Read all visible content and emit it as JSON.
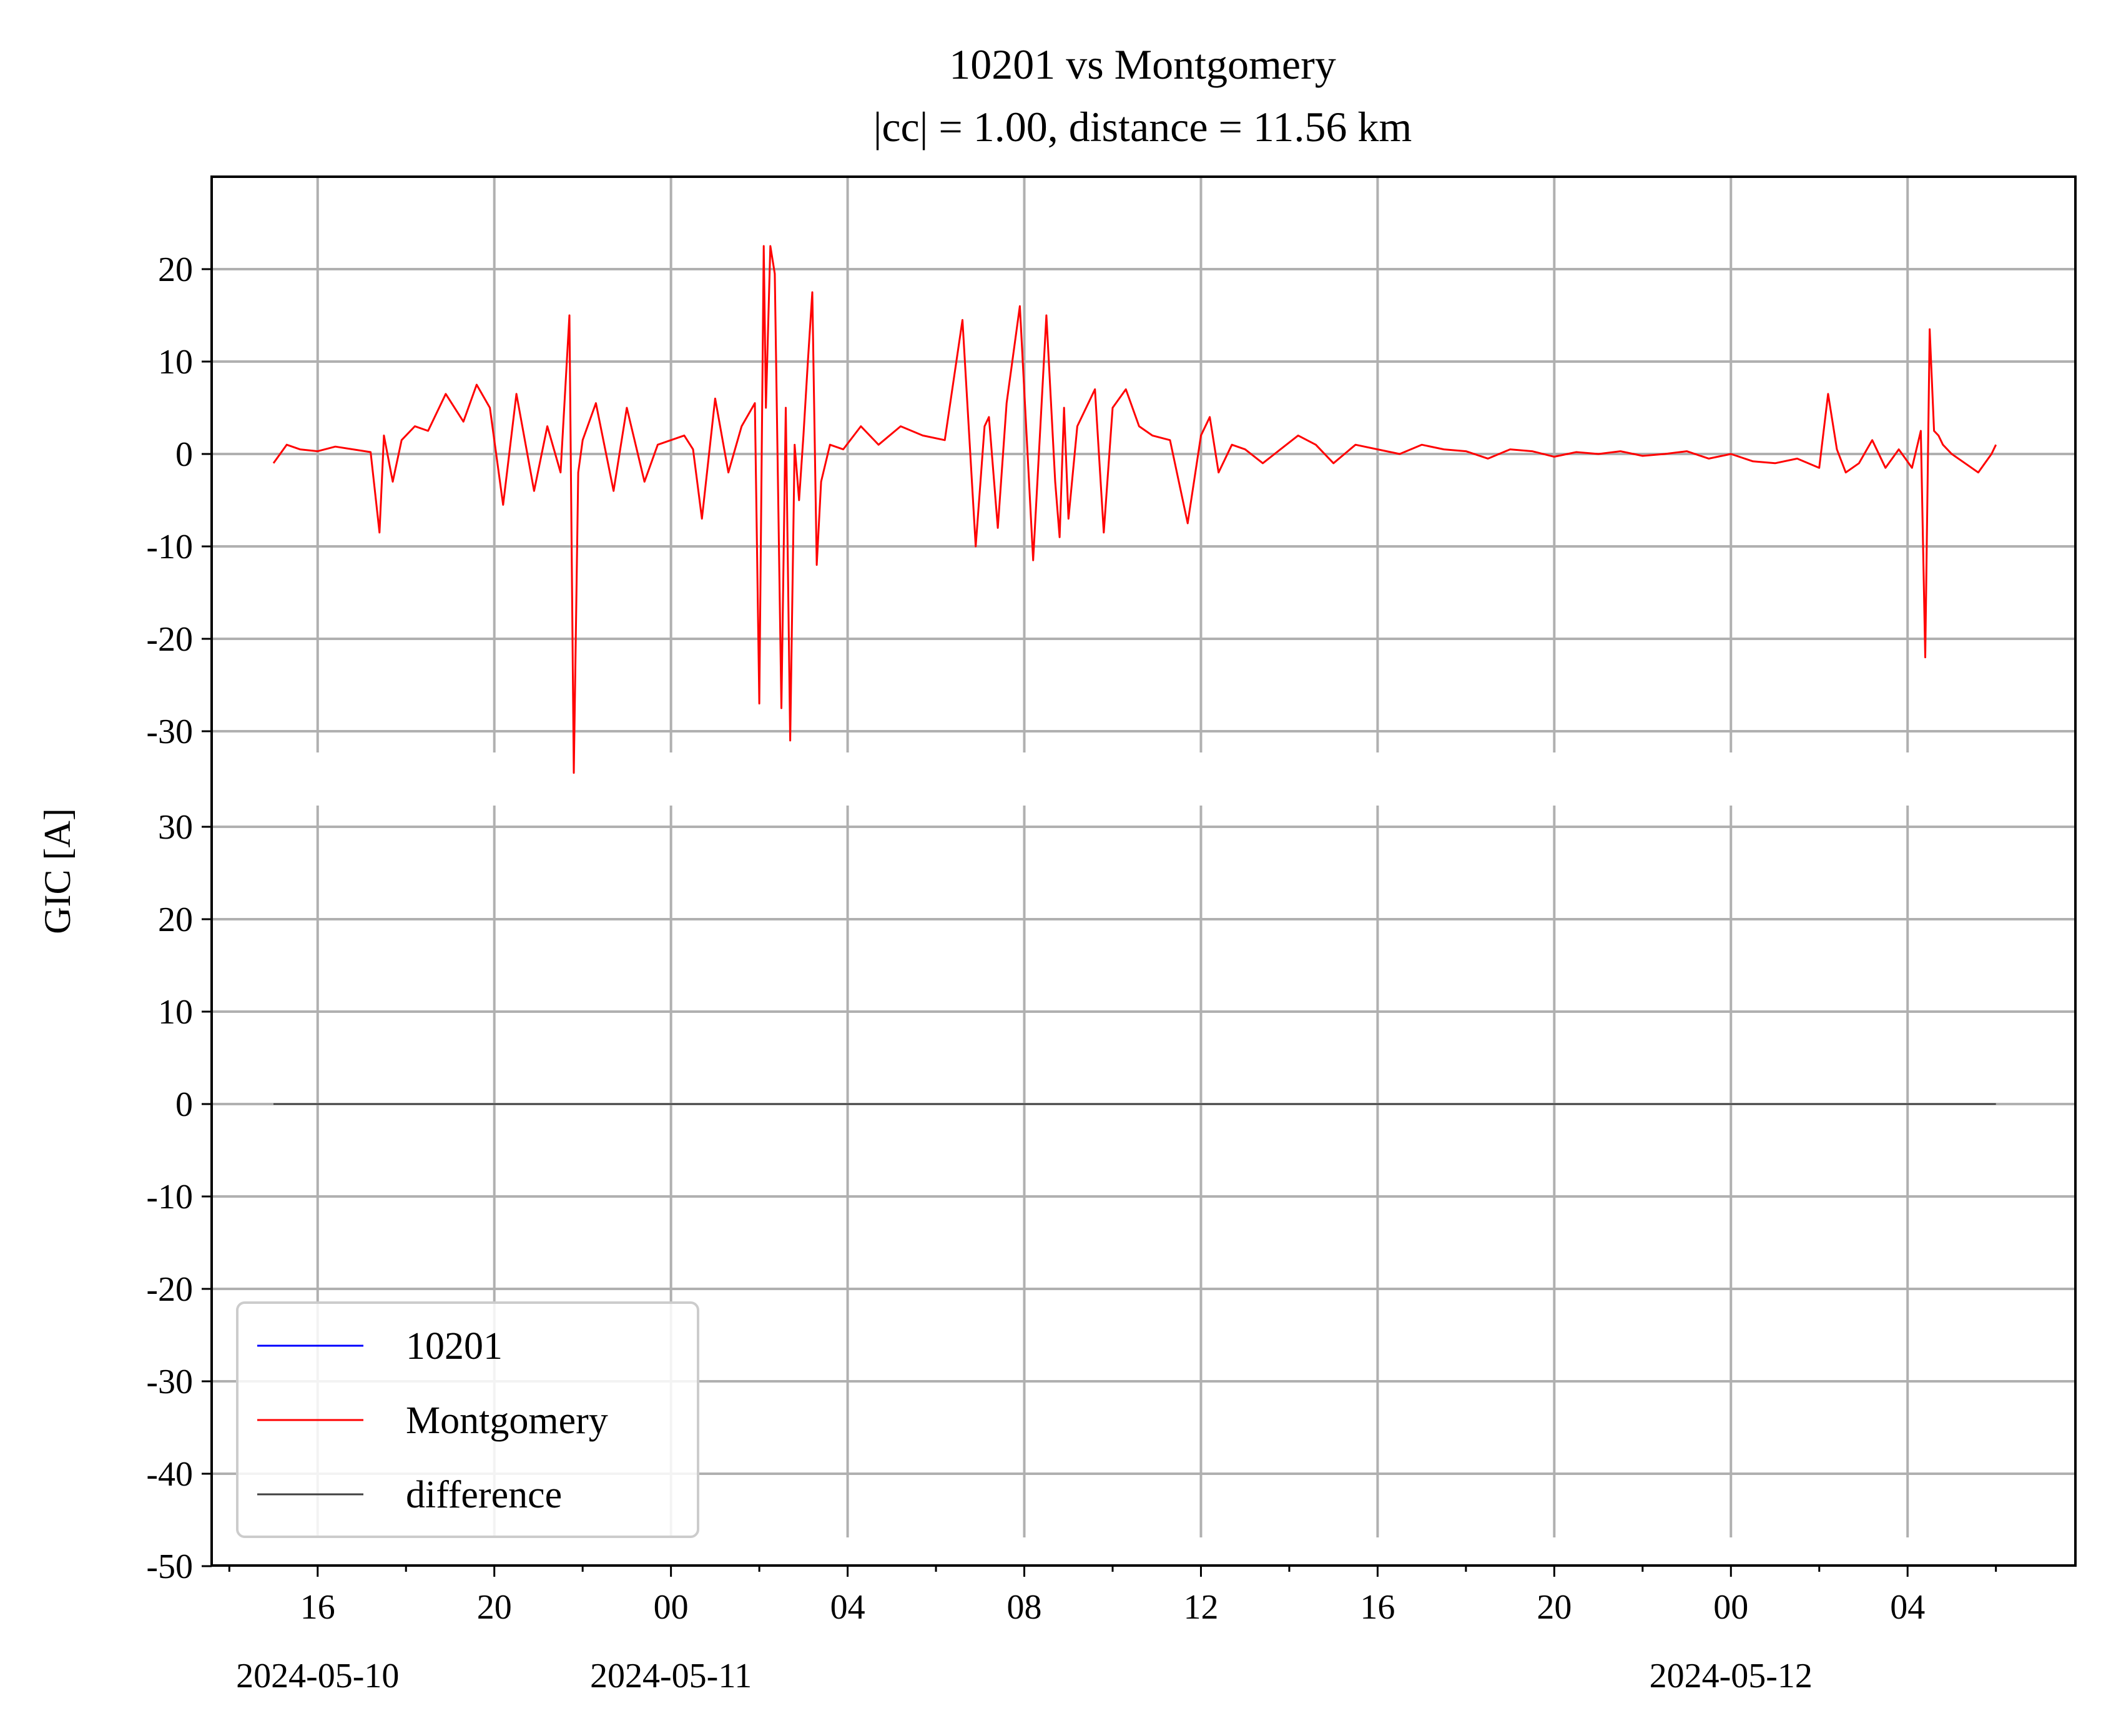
{
  "chart_data": {
    "type": "line",
    "title": "10201 vs Montgomery",
    "subtitle": "|cc| = 1.00, distance = 11.56 km",
    "ylabel": "GIC [A]",
    "x_axis": {
      "type": "datetime",
      "range": [
        "2024-05-10T13:36",
        "2024-05-12T07:48"
      ],
      "tick_labels": [
        "16",
        "20",
        "00",
        "04",
        "08",
        "12",
        "16",
        "20",
        "00",
        "04"
      ],
      "tick_hours": [
        16,
        20,
        24,
        28,
        32,
        36,
        40,
        44,
        48,
        52
      ],
      "date_labels": [
        {
          "label": "2024-05-10",
          "hour": 16
        },
        {
          "label": "2024-05-11",
          "hour": 24
        },
        {
          "label": "2024-05-12",
          "hour": 48
        }
      ]
    },
    "top_panel": {
      "ylim": [
        -35,
        30
      ],
      "yticks": [
        "20",
        "10",
        "0",
        "-10",
        "-20",
        "-30"
      ],
      "ytick_values": [
        20,
        10,
        0,
        -10,
        -20,
        -30
      ]
    },
    "bottom_panel": {
      "ylim": [
        -50,
        32
      ],
      "yticks": [
        "30",
        "20",
        "10",
        "0",
        "-10",
        "-20",
        "-30",
        "-40",
        "-50"
      ],
      "ytick_values": [
        30,
        20,
        10,
        0,
        -10,
        -20,
        -30,
        -40,
        -50
      ]
    },
    "grid": true,
    "legend": {
      "placement": "lower-left",
      "entries": [
        {
          "name": "10201",
          "color": "#0000ff"
        },
        {
          "name": "Montgomery",
          "color": "#ff0000"
        },
        {
          "name": "difference",
          "color": "#404040"
        }
      ]
    },
    "series": [
      {
        "name": "Montgomery",
        "panel": "top",
        "color": "#ff0000",
        "x_unit": "hours since 2024-05-10 00:00",
        "x": [
          15.0,
          15.3,
          15.6,
          16.0,
          16.4,
          16.8,
          17.2,
          17.4,
          17.5,
          17.7,
          17.9,
          18.2,
          18.5,
          18.9,
          19.3,
          19.6,
          19.9,
          20.2,
          20.5,
          20.9,
          21.2,
          21.5,
          21.7,
          21.8,
          21.9,
          22.0,
          22.3,
          22.7,
          23.0,
          23.4,
          23.7,
          24.0,
          24.3,
          24.5,
          24.7,
          25.0,
          25.3,
          25.6,
          25.9,
          26.0,
          26.1,
          26.15,
          26.25,
          26.35,
          26.5,
          26.6,
          26.7,
          26.8,
          26.9,
          27.0,
          27.1,
          27.2,
          27.3,
          27.4,
          27.6,
          27.9,
          28.3,
          28.7,
          29.2,
          29.7,
          30.2,
          30.6,
          30.9,
          31.1,
          31.2,
          31.4,
          31.6,
          31.9,
          32.2,
          32.5,
          32.7,
          32.8,
          32.9,
          33.0,
          33.2,
          33.6,
          33.8,
          34.0,
          34.3,
          34.6,
          34.9,
          35.3,
          35.7,
          36.0,
          36.2,
          36.4,
          36.7,
          37.0,
          37.4,
          37.8,
          38.2,
          38.6,
          39.0,
          39.5,
          40.0,
          40.5,
          41.0,
          41.5,
          42.0,
          42.5,
          43.0,
          43.5,
          44.0,
          44.5,
          45.0,
          45.5,
          46.0,
          46.5,
          47.0,
          47.5,
          48.0,
          48.5,
          49.0,
          49.5,
          50.0,
          50.2,
          50.4,
          50.6,
          50.9,
          51.2,
          51.5,
          51.8,
          52.1,
          52.3,
          52.4,
          52.5,
          52.6,
          52.7,
          52.8,
          53.0,
          53.3,
          53.6,
          53.9,
          54.0
        ],
        "y": [
          -1.0,
          1.0,
          0.5,
          0.3,
          0.8,
          0.5,
          0.2,
          -8.5,
          2.0,
          -3.0,
          1.5,
          3.0,
          2.5,
          6.5,
          3.5,
          7.5,
          5.0,
          -5.5,
          6.5,
          -4.0,
          3.0,
          -2.0,
          15.0,
          -34.5,
          -2.0,
          1.5,
          5.5,
          -4.0,
          5.0,
          -3.0,
          1.0,
          1.5,
          2.0,
          0.5,
          -7.0,
          6.0,
          -2.0,
          3.0,
          5.5,
          -27.0,
          22.5,
          5.0,
          22.5,
          19.5,
          -27.5,
          5.0,
          -31.0,
          1.0,
          -5.0,
          2.0,
          10.0,
          17.5,
          -12.0,
          -3.0,
          1.0,
          0.5,
          3.0,
          1.0,
          3.0,
          2.0,
          1.5,
          14.5,
          -10.0,
          3.0,
          4.0,
          -8.0,
          5.5,
          16.0,
          -11.5,
          15.0,
          -3.0,
          -9.0,
          5.0,
          -7.0,
          3.0,
          7.0,
          -8.5,
          5.0,
          7.0,
          3.0,
          2.0,
          1.5,
          -7.5,
          2.0,
          4.0,
          -2.0,
          1.0,
          0.5,
          -1.0,
          0.5,
          2.0,
          1.0,
          -1.0,
          1.0,
          0.5,
          0.0,
          1.0,
          0.5,
          0.3,
          -0.5,
          0.5,
          0.3,
          -0.3,
          0.2,
          0.0,
          0.3,
          -0.2,
          0.0,
          0.3,
          -0.5,
          0.0,
          -0.8,
          -1.0,
          -0.5,
          -1.5,
          6.5,
          0.5,
          -2.0,
          -1.0,
          1.5,
          -1.5,
          0.5,
          -1.5,
          2.5,
          -22.0,
          13.5,
          2.5,
          2.0,
          1.0,
          0.0,
          -1.0,
          -2.0,
          0.0,
          1.0
        ]
      },
      {
        "name": "10201",
        "panel": "top",
        "color": "#0000ff",
        "x_unit": "hours since 2024-05-10 00:00",
        "x": [],
        "y": []
      },
      {
        "name": "difference",
        "panel": "bottom",
        "color": "#404040",
        "x_unit": "hours since 2024-05-10 00:00",
        "x": [
          15.0,
          54.0
        ],
        "y": [
          0,
          0
        ]
      }
    ]
  }
}
